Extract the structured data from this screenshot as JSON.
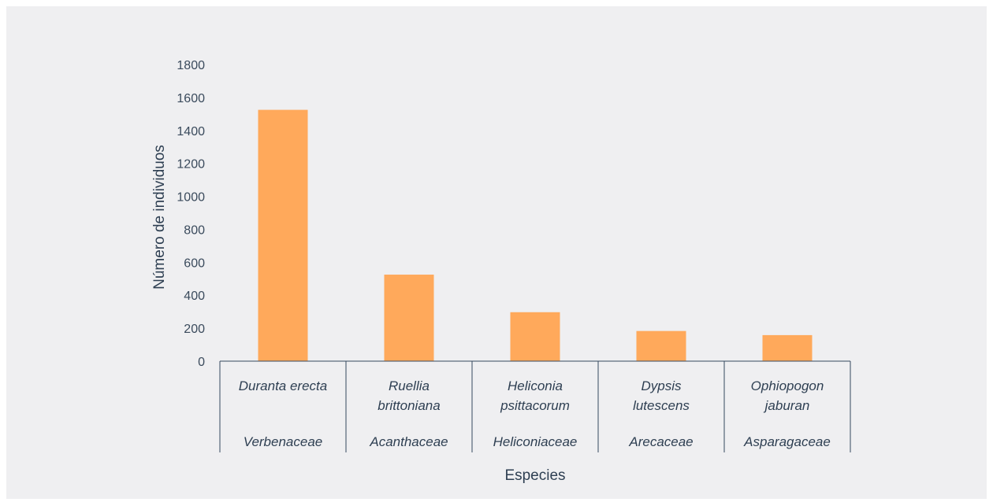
{
  "chart_data": {
    "type": "bar",
    "categories": [
      {
        "species": [
          "Duranta erecta"
        ],
        "family": "Verbenaceae"
      },
      {
        "species": [
          "Ruellia",
          "brittoniana"
        ],
        "family": "Acanthaceae"
      },
      {
        "species": [
          "Heliconia",
          "psittacorum"
        ],
        "family": "Heliconiaceae"
      },
      {
        "species": [
          "Dypsis",
          "lutescens"
        ],
        "family": "Arecaceae"
      },
      {
        "species": [
          "Ophiopogon",
          "jaburan"
        ],
        "family": "Asparagaceae"
      }
    ],
    "values": [
      1525,
      525,
      297,
      183,
      158
    ],
    "ylim": [
      0,
      1800
    ],
    "yticks": [
      0,
      200,
      400,
      600,
      800,
      1000,
      1200,
      1400,
      1600,
      1800
    ],
    "xlabel": "Especies",
    "ylabel": "Número de individuos",
    "grid": false,
    "legend": "none",
    "colors": {
      "bar": "#ffa95b",
      "axis": "#34495e",
      "background": "#efeff1"
    }
  }
}
